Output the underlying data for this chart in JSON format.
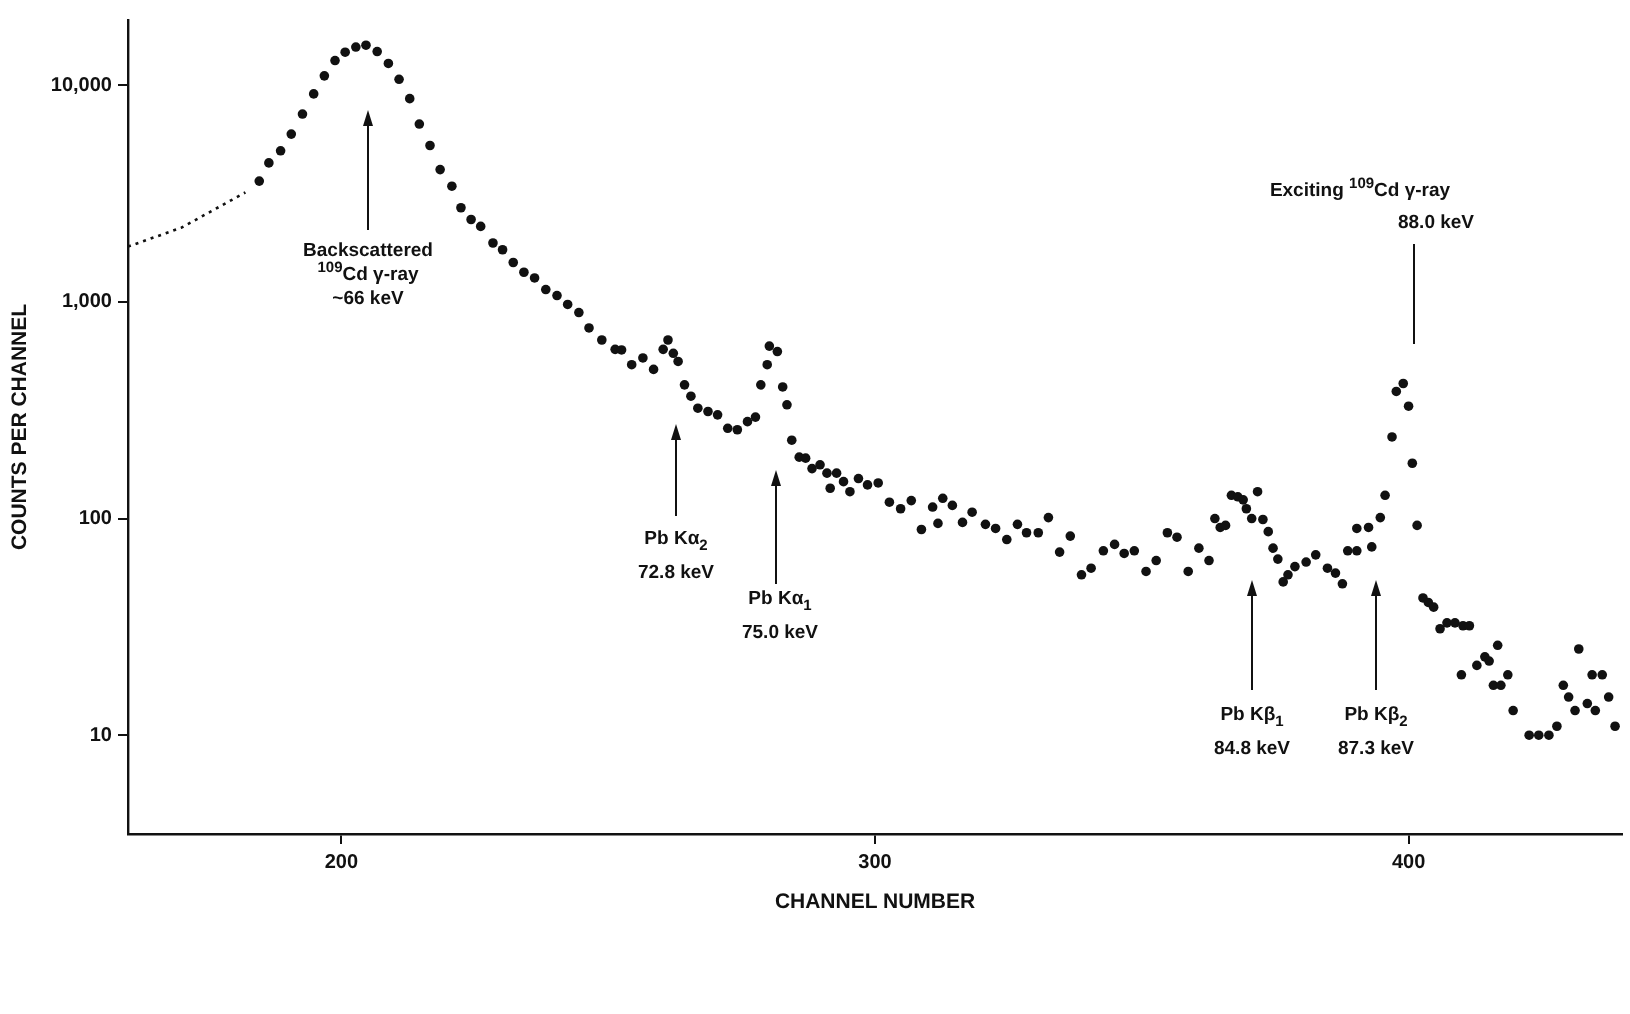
{
  "chart_data": {
    "type": "scatter",
    "xlabel": "CHANNEL NUMBER",
    "ylabel": "COUNTS PER CHANNEL",
    "xlim": [
      160,
      440
    ],
    "xticks": [
      200,
      300,
      400
    ],
    "ylim": [
      3.5,
      20000
    ],
    "yticks": [
      {
        "value": 10,
        "label": "10"
      },
      {
        "value": 100,
        "label": "100"
      },
      {
        "value": 1000,
        "label": "1,000"
      },
      {
        "value": 10000,
        "label": "10,000"
      }
    ],
    "log": "y",
    "grid": false,
    "legend": false,
    "series": [
      {
        "type": "line",
        "line_style": "dotted",
        "marker": "none",
        "color": "#111111",
        "x": [
          160,
          170,
          182
        ],
        "values": [
          1800,
          2200,
          3200
        ]
      },
      {
        "type": "scatter",
        "marker": "circle",
        "color": "#111111",
        "x": [
          184.6,
          186.4,
          188.6,
          190.6,
          192.7,
          194.8,
          196.8,
          198.8,
          200.7,
          202.7,
          204.6,
          206.7,
          208.8,
          210.8,
          212.8,
          214.6,
          216.6,
          218.5,
          220.7,
          222.4,
          224.3,
          226.1,
          228.4,
          230.2,
          232.2,
          234.2,
          236.2,
          238.3,
          240.4,
          242.4,
          244.5,
          246.4,
          248.8,
          251.3,
          252.5,
          254.4,
          256.5,
          258.5,
          260.3,
          261.2,
          262.2,
          263.1,
          264.3,
          265.5,
          266.8,
          268.7,
          270.5,
          272.4,
          274.2,
          276.1,
          277.6,
          278.6,
          279.8,
          280.2,
          281.7,
          282.7,
          283.5,
          284.4,
          285.8,
          287.0,
          288.2,
          289.7,
          291.0,
          291.6,
          292.8,
          294.1,
          295.3,
          296.9,
          298.6,
          300.6,
          302.7,
          304.8,
          306.8,
          308.7,
          310.8,
          311.8,
          312.7,
          314.5,
          316.4,
          318.2,
          320.7,
          322.6,
          324.7,
          326.7,
          328.4,
          330.6,
          332.5,
          334.6,
          336.6,
          338.7,
          340.5,
          342.8,
          344.9,
          346.7,
          348.6,
          350.8,
          352.7,
          354.8,
          356.6,
          358.7,
          360.7,
          362.6,
          363.7,
          364.7,
          365.7,
          366.8,
          368.0,
          369.0,
          369.6,
          370.6,
          371.7,
          372.7,
          373.7,
          374.6,
          375.5,
          376.5,
          377.4,
          378.7,
          380.8,
          382.6,
          384.8,
          386.3,
          387.6,
          388.6,
          390.3,
          390.3,
          392.5,
          393.1,
          394.7,
          395.6,
          396.9,
          397.7,
          399.0,
          400.0,
          400.7,
          401.6,
          402.7,
          403.7,
          404.7,
          405.9,
          407.2,
          408.7,
          409.9,
          410.2,
          411.4,
          412.8,
          414.3,
          415.1,
          415.9,
          416.7,
          417.3,
          418.6,
          419.6,
          422.6,
          424.4,
          426.3,
          427.8,
          429.0,
          430.0,
          431.2,
          431.9,
          433.5,
          434.4,
          435.0,
          436.3,
          437.5,
          438.7
        ],
        "values": [
          3610,
          4380,
          4980,
          5950,
          7360,
          9120,
          11050,
          13000,
          14200,
          15000,
          15300,
          14300,
          12600,
          10650,
          8670,
          6620,
          5270,
          4080,
          3420,
          2720,
          2400,
          2230,
          1870,
          1740,
          1520,
          1370,
          1290,
          1140,
          1070,
          973,
          893,
          758,
          667,
          604,
          600,
          513,
          551,
          488,
          604,
          667,
          579,
          531,
          414,
          367,
          323,
          312,
          301,
          261,
          257,
          280,
          294,
          414,
          513,
          625,
          590,
          405,
          335,
          230,
          192,
          190,
          170,
          177,
          162,
          138,
          162,
          148,
          133,
          153,
          143,
          146,
          119,
          111,
          121,
          89,
          113,
          95,
          124,
          115,
          96,
          107,
          94,
          90,
          80,
          94,
          86,
          86,
          101,
          70,
          83,
          55,
          59,
          71,
          76,
          69,
          71,
          57,
          64,
          86,
          82,
          57,
          73,
          64,
          100,
          91,
          93,
          128,
          126,
          122,
          111,
          100,
          133,
          99,
          87,
          73,
          65,
          51,
          55,
          60,
          63,
          68,
          59,
          56,
          50,
          71,
          71,
          90,
          91,
          74,
          101,
          128,
          238,
          386,
          420,
          330,
          180,
          93,
          43,
          41,
          39,
          31,
          33,
          33,
          19,
          32,
          32,
          21,
          23,
          22,
          17,
          26,
          17,
          19,
          13,
          10,
          10,
          10,
          11,
          17,
          15,
          13,
          25,
          14,
          19,
          13,
          19,
          15,
          11
        ]
      }
    ],
    "annotations": [
      "Backscattered\n$^{109}$Cd γ-ray\n~66 keV",
      "Pb Kα$_{2}$\n72.8 keV",
      "Pb Kα$_{1}$\n75.0 keV",
      "Pb Kβ$_{1}$\n84.8 keV",
      "Pb Kβ$_{2}$\n87.3 keV",
      "Exciting $^{109}$Cd γ-ray\n88.0 keV"
    ]
  }
}
